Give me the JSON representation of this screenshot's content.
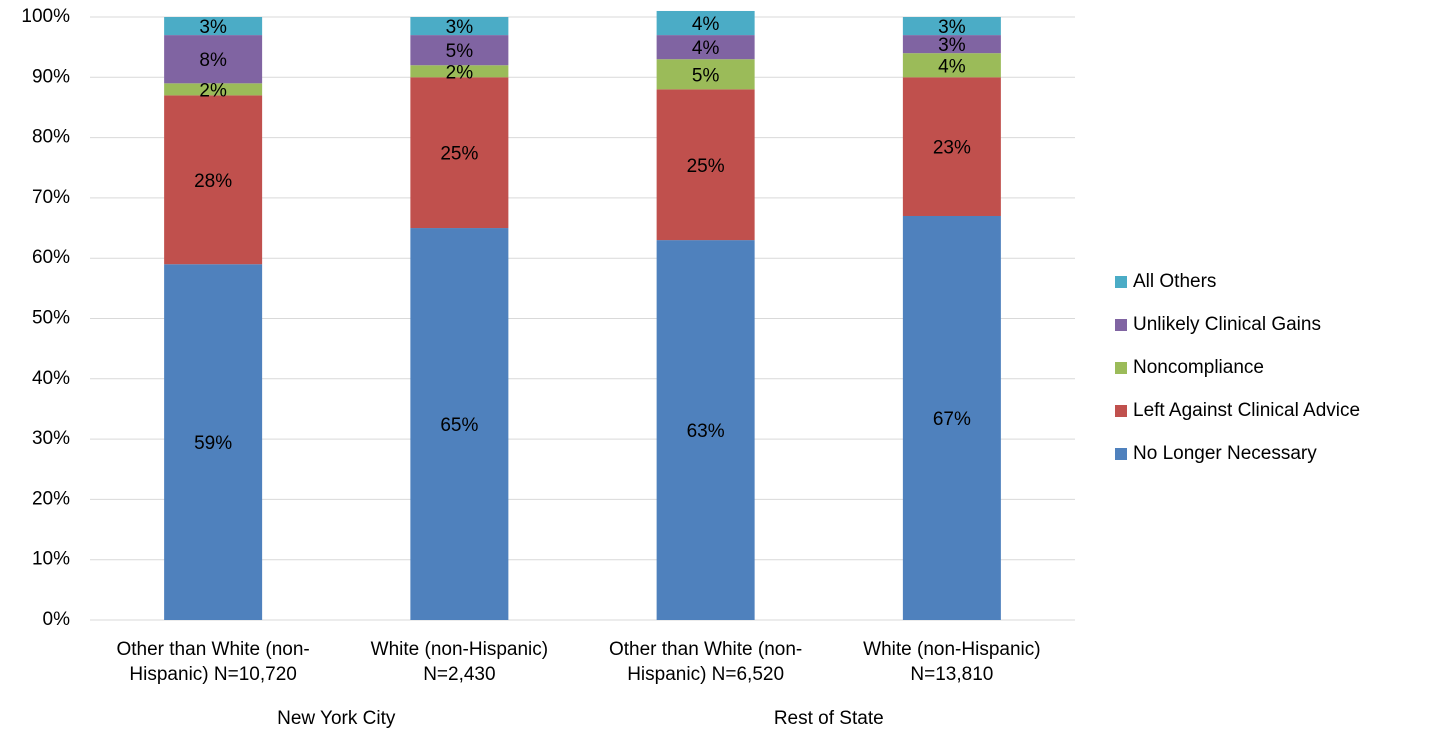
{
  "chart_data": {
    "type": "bar",
    "stacked": true,
    "percent_axis": true,
    "ylim": [
      0,
      100
    ],
    "ytick_step": 10,
    "grid": true,
    "legend_position": "right",
    "group_labels": [
      "New York City",
      "Rest of State"
    ],
    "categories": [
      {
        "line1": "Other than White (non-",
        "line2": "Hispanic) N=10,720",
        "group": 0
      },
      {
        "line1": "White (non-Hispanic)",
        "line2": "N=2,430",
        "group": 0
      },
      {
        "line1": "Other than White (non-",
        "line2": "Hispanic) N=6,520",
        "group": 1
      },
      {
        "line1": "White (non-Hispanic)",
        "line2": "N=13,810",
        "group": 1
      }
    ],
    "series": [
      {
        "name": "No Longer Necessary",
        "color": "#4F81BD",
        "values": [
          59,
          65,
          63,
          67
        ],
        "labels": [
          "59%",
          "65%",
          "63%",
          "67%"
        ]
      },
      {
        "name": "Left Against Clinical Advice",
        "color": "#C0504D",
        "values": [
          28,
          25,
          25,
          23
        ],
        "labels": [
          "28%",
          "25%",
          "25%",
          "23%"
        ]
      },
      {
        "name": "Noncompliance",
        "color": "#9BBB59",
        "values": [
          2,
          2,
          5,
          4
        ],
        "labels": [
          "2%",
          "2%",
          "5%",
          "4%"
        ]
      },
      {
        "name": "Unlikely Clinical Gains",
        "color": "#8064A2",
        "values": [
          8,
          5,
          4,
          3
        ],
        "labels": [
          "8%",
          "5%",
          "4%",
          "3%"
        ]
      },
      {
        "name": "All Others",
        "color": "#4BACC6",
        "values": [
          3,
          3,
          4,
          3
        ],
        "labels": [
          "3%",
          "3%",
          "4%",
          "3%"
        ]
      }
    ]
  }
}
